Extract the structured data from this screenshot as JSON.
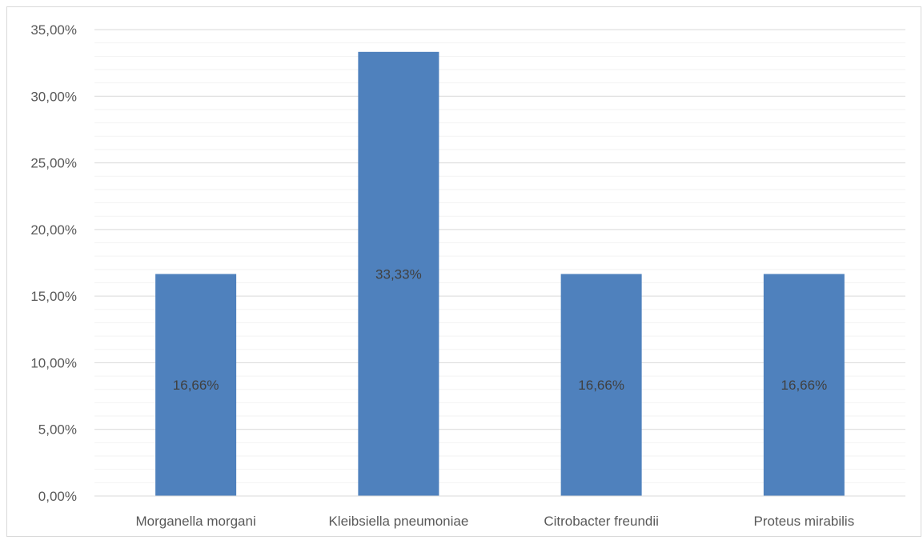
{
  "chart_data": {
    "type": "bar",
    "categories": [
      "Morganella morgani",
      "Kleibsiella pneumoniae",
      "Citrobacter freundii",
      "Proteus mirabilis"
    ],
    "values": [
      16.66,
      33.33,
      16.66,
      16.66
    ],
    "data_labels": [
      "16,66%",
      "33,33%",
      "16,66%",
      "16,66%"
    ],
    "ylim": [
      0,
      35
    ],
    "y_major_ticks": [
      0,
      5,
      10,
      15,
      20,
      25,
      30,
      35
    ],
    "y_tick_labels": [
      "0,00%",
      "5,00%",
      "10,00%",
      "15,00%",
      "20,00%",
      "25,00%",
      "30,00%",
      "35,00%"
    ],
    "y_minor_step": 1,
    "grid": true,
    "title": "",
    "xlabel": "",
    "ylabel": "",
    "colors": {
      "bar": "#4f81bd",
      "major_grid": "#d9d9d9",
      "minor_grid": "#f2f2f2",
      "axis": "#d9d9d9"
    }
  }
}
